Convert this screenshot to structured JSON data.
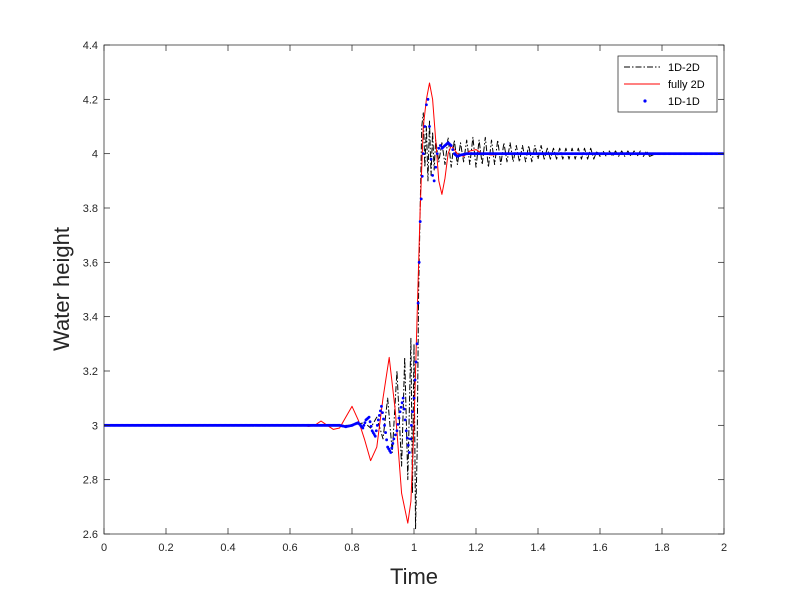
{
  "chart_data": {
    "type": "line",
    "xlabel": "Time",
    "ylabel": "Water height",
    "xlim": [
      0,
      2
    ],
    "ylim": [
      2.6,
      4.4
    ],
    "x_ticks": [
      0,
      0.2,
      0.4,
      0.6,
      0.8,
      1,
      1.2,
      1.4,
      1.6,
      1.8,
      2
    ],
    "x_tick_labels": [
      "0",
      "0.2",
      "0.4",
      "0.6",
      "0.8",
      "1",
      "1.2",
      "1.4",
      "1.6",
      "1.8",
      "2"
    ],
    "y_ticks": [
      2.6,
      2.8,
      3,
      3.2,
      3.4,
      3.6,
      3.8,
      4,
      4.2,
      4.4
    ],
    "y_tick_labels": [
      "2.6",
      "2.8",
      "3",
      "3.2",
      "3.4",
      "3.6",
      "3.8",
      "4",
      "4.2",
      "4.4"
    ],
    "grid": false,
    "legend_position": "top-right",
    "series": [
      {
        "name": "1D-2D",
        "color": "#000000",
        "style": "dash-dot",
        "x": [
          0,
          0.5,
          0.62,
          0.72,
          0.8,
          0.84,
          0.86,
          0.88,
          0.9,
          0.915,
          0.93,
          0.945,
          0.96,
          0.97,
          0.98,
          0.99,
          0.995,
          1.0,
          1.005,
          1.01,
          1.015,
          1.02,
          1.025,
          1.03,
          1.035,
          1.04,
          1.045,
          1.05,
          1.055,
          1.06,
          1.065,
          1.07,
          1.08,
          1.09,
          1.1,
          1.11,
          1.12,
          1.13,
          1.14,
          1.15,
          1.16,
          1.17,
          1.18,
          1.19,
          1.2,
          1.21,
          1.22,
          1.23,
          1.24,
          1.25,
          1.26,
          1.27,
          1.28,
          1.29,
          1.3,
          1.31,
          1.32,
          1.33,
          1.34,
          1.35,
          1.36,
          1.37,
          1.38,
          1.39,
          1.4,
          1.41,
          1.42,
          1.43,
          1.44,
          1.45,
          1.46,
          1.47,
          1.48,
          1.49,
          1.5,
          1.51,
          1.52,
          1.53,
          1.54,
          1.55,
          1.56,
          1.57,
          1.58,
          1.59,
          1.6,
          1.61,
          1.62,
          1.63,
          1.64,
          1.65,
          1.66,
          1.67,
          1.68,
          1.69,
          1.7,
          1.71,
          1.72,
          1.73,
          1.74,
          1.75,
          1.76,
          1.78,
          1.8,
          1.85,
          1.9,
          2.0
        ],
        "y": [
          3.0,
          3.0,
          3.0,
          3.0,
          3.0,
          3.01,
          2.99,
          3.03,
          2.95,
          3.1,
          2.9,
          3.2,
          2.85,
          3.25,
          2.8,
          3.32,
          2.75,
          3.3,
          2.62,
          2.9,
          3.5,
          3.8,
          4.1,
          4.15,
          3.95,
          4.1,
          3.9,
          4.12,
          3.92,
          4.08,
          3.94,
          4.05,
          3.97,
          4.04,
          3.96,
          4.06,
          3.95,
          4.05,
          3.96,
          4.04,
          3.97,
          4.05,
          3.96,
          4.06,
          3.95,
          4.05,
          3.96,
          4.06,
          3.95,
          4.05,
          3.96,
          4.05,
          3.96,
          4.04,
          3.97,
          4.04,
          3.97,
          4.03,
          3.97,
          4.03,
          3.97,
          4.03,
          3.97,
          4.03,
          3.98,
          4.03,
          3.98,
          4.02,
          3.98,
          4.02,
          3.98,
          4.02,
          3.98,
          4.02,
          3.98,
          4.02,
          3.98,
          4.02,
          3.98,
          4.02,
          3.98,
          4.02,
          3.98,
          4.01,
          3.99,
          4.01,
          3.99,
          4.01,
          3.99,
          4.01,
          3.99,
          4.01,
          3.99,
          4.01,
          3.99,
          4.01,
          3.99,
          4.01,
          3.99,
          4.01,
          3.99,
          4.0,
          4.0,
          4.0,
          4.0,
          4.0
        ]
      },
      {
        "name": "fully 2D",
        "color": "#ff0000",
        "style": "solid",
        "x": [
          0,
          0.55,
          0.6,
          0.63,
          0.66,
          0.68,
          0.7,
          0.72,
          0.74,
          0.76,
          0.78,
          0.8,
          0.82,
          0.84,
          0.86,
          0.88,
          0.9,
          0.92,
          0.94,
          0.96,
          0.98,
          0.99,
          1.0,
          1.01,
          1.02,
          1.03,
          1.04,
          1.05,
          1.06,
          1.07,
          1.08,
          1.09,
          1.1,
          1.11,
          1.12,
          1.14,
          1.16,
          1.18,
          1.2,
          1.22,
          1.25,
          1.3,
          1.35,
          1.4,
          1.5,
          1.6,
          1.7,
          1.8,
          1.9,
          2.0
        ],
        "y": [
          3.0,
          3.0,
          3.0,
          3.002,
          2.996,
          3.0,
          3.016,
          3.0,
          2.985,
          2.99,
          3.03,
          3.07,
          3.02,
          2.95,
          2.87,
          2.92,
          3.1,
          3.25,
          3.05,
          2.75,
          2.64,
          2.72,
          3.0,
          3.4,
          3.8,
          4.1,
          4.2,
          4.26,
          4.2,
          4.05,
          3.9,
          3.85,
          3.91,
          4.0,
          4.03,
          4.0,
          3.99,
          4.01,
          4.015,
          4.0,
          3.995,
          4.0,
          4.0,
          4.0,
          4.0,
          4.0,
          4.0,
          4.0,
          4.0,
          4.0
        ]
      },
      {
        "name": "1D-1D",
        "color": "#0000ff",
        "style": "dots",
        "x": [
          0,
          0.7,
          0.76,
          0.78,
          0.8,
          0.82,
          0.835,
          0.845,
          0.855,
          0.865,
          0.875,
          0.885,
          0.895,
          0.905,
          0.915,
          0.925,
          0.935,
          0.945,
          0.955,
          0.965,
          0.975,
          0.985,
          0.995,
          1.0,
          1.01,
          1.02,
          1.03,
          1.035,
          1.04,
          1.045,
          1.05,
          1.055,
          1.06,
          1.065,
          1.07,
          1.075,
          1.08,
          1.085,
          1.09,
          1.1,
          1.11,
          1.12,
          1.13,
          1.14,
          1.15,
          1.17,
          1.2,
          1.25,
          1.3,
          1.4,
          1.5,
          1.6,
          1.7,
          1.8,
          1.9,
          2.0
        ],
        "y": [
          3.0,
          3.0,
          3.0,
          2.995,
          3.0,
          3.01,
          2.99,
          3.02,
          3.03,
          2.98,
          2.96,
          3.02,
          3.07,
          3.0,
          2.92,
          2.9,
          2.95,
          2.98,
          3.05,
          3.1,
          2.98,
          2.9,
          3.05,
          3.1,
          3.3,
          3.75,
          4.0,
          4.1,
          4.18,
          4.2,
          4.1,
          3.98,
          3.92,
          3.9,
          3.95,
          4.0,
          4.02,
          4.03,
          4.02,
          4.03,
          4.04,
          4.03,
          4.0,
          3.99,
          3.995,
          4.0,
          4.0,
          4.0,
          4.0,
          4.0,
          4.0,
          4.0,
          4.0,
          4.0,
          4.0,
          4.0
        ]
      }
    ]
  }
}
